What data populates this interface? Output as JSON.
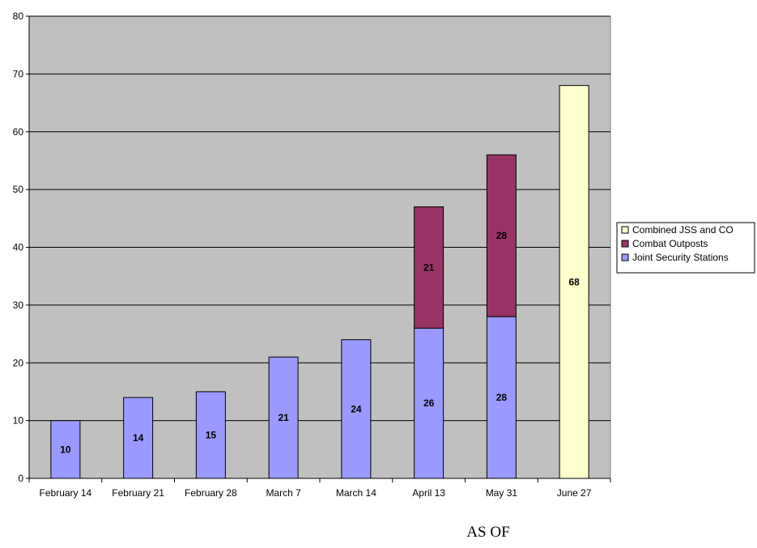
{
  "chart_data": {
    "type": "bar",
    "stacked": true,
    "categories": [
      "February 14",
      "February 21",
      "February 28",
      "March 7",
      "March 14",
      "April 13",
      "May 31",
      "June 27"
    ],
    "series": [
      {
        "name": "Joint Security Stations",
        "color": "#9999ff",
        "values": [
          10,
          14,
          15,
          21,
          24,
          26,
          28,
          0
        ]
      },
      {
        "name": "Combat Outposts",
        "color": "#993366",
        "values": [
          0,
          0,
          0,
          0,
          0,
          21,
          28,
          0
        ]
      },
      {
        "name": "Combined JSS and CO",
        "color": "#ffffcc",
        "values": [
          0,
          0,
          0,
          0,
          0,
          0,
          0,
          68
        ]
      }
    ],
    "xlabel": "AS OF",
    "ylabel": "",
    "ylim": [
      0,
      80
    ],
    "yticks": [
      0,
      10,
      20,
      30,
      40,
      50,
      60,
      70,
      80
    ],
    "grid": true,
    "plot_background": "#c0c0c0",
    "legend_position": "right",
    "legend_order": [
      "Combined JSS and CO",
      "Combat Outposts",
      "Joint Security Stations"
    ]
  }
}
